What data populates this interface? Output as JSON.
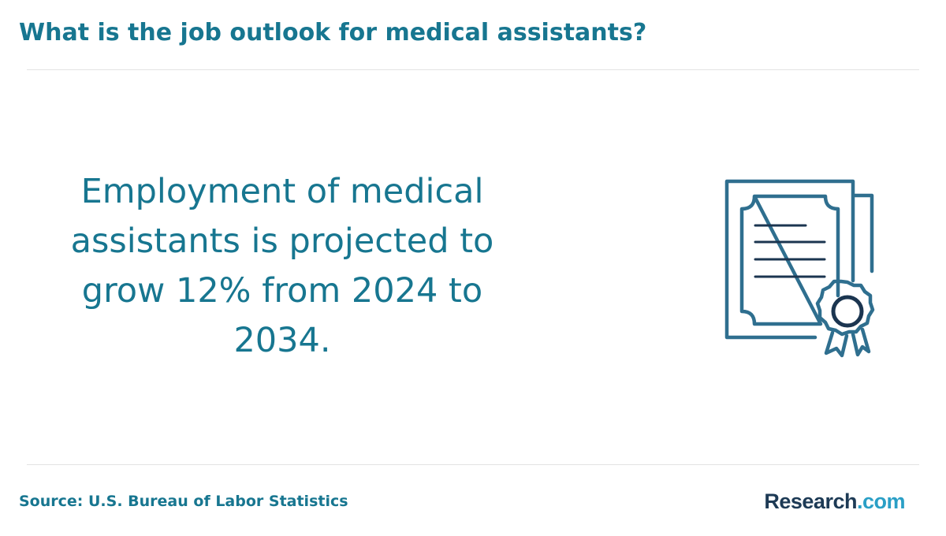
{
  "header": {
    "title": "What is the job outlook for medical assistants?"
  },
  "main": {
    "statement": "Employment of medical assistants is projected to grow 12% from 2024 to 2034.",
    "icon": "certificate-award-icon"
  },
  "footer": {
    "source": "Source: U.S. Bureau of Labor Statistics",
    "logo_brand": "Research",
    "logo_tld": ".com"
  },
  "colors": {
    "title": "#177690",
    "icon_stroke": "#2f6f8f",
    "icon_dark": "#1b3550",
    "logo_brand": "#1d3a55",
    "logo_tld": "#2a9fc6",
    "divider": "#e3e3e3"
  }
}
